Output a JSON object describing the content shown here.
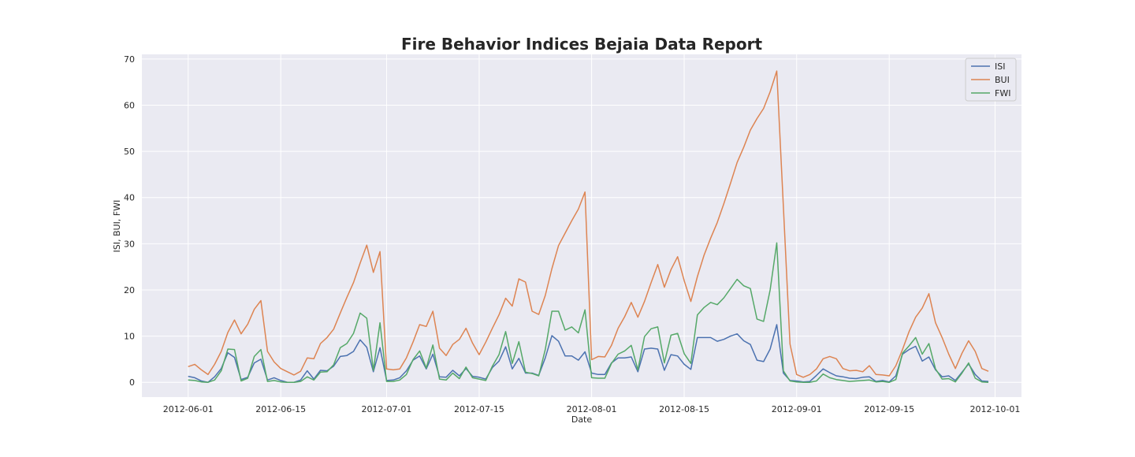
{
  "chart_data": {
    "type": "line",
    "title": "Fire Behavior Indices Bejaia Data Report",
    "xlabel": "Date",
    "ylabel": "ISI, BUI, FWI",
    "x_tick_labels": [
      "2012-06-01",
      "2012-06-15",
      "2012-07-01",
      "2012-07-15",
      "2012-08-01",
      "2012-08-15",
      "2012-09-01",
      "2012-09-15",
      "2012-10-01"
    ],
    "y_ticks": [
      0,
      10,
      20,
      30,
      40,
      50,
      60,
      70
    ],
    "xlim": [
      "2012-05-25",
      "2012-10-05"
    ],
    "ylim": [
      -3.2,
      71
    ],
    "grid": true,
    "legend_position": "top-right",
    "x_start_date": "2012-06-01",
    "series": [
      {
        "name": "ISI",
        "color": "#4c72b0",
        "values": [
          1.3,
          1.0,
          0.3,
          0.0,
          1.2,
          3.0,
          6.4,
          5.4,
          0.6,
          1.1,
          4.2,
          5.0,
          0.5,
          1.0,
          0.4,
          0.0,
          0.0,
          0.5,
          2.5,
          0.7,
          2.6,
          2.5,
          3.5,
          5.6,
          5.8,
          6.7,
          9.2,
          7.6,
          2.3,
          7.5,
          0.4,
          0.5,
          1.0,
          2.5,
          4.8,
          5.7,
          2.9,
          6.1,
          1.2,
          1.1,
          2.6,
          1.4,
          3.0,
          1.3,
          1.1,
          0.7,
          3.2,
          4.6,
          7.7,
          2.9,
          5.2,
          2.0,
          2.0,
          1.5,
          5.3,
          10.1,
          8.9,
          5.7,
          5.7,
          4.8,
          6.6,
          2.0,
          1.7,
          1.7,
          4.2,
          5.3,
          5.3,
          5.5,
          2.3,
          7.2,
          7.4,
          7.2,
          2.6,
          6.0,
          5.7,
          3.9,
          2.8,
          9.7,
          9.7,
          9.7,
          8.9,
          9.3,
          10.0,
          10.5,
          9.0,
          8.2,
          4.8,
          4.5,
          7.2,
          12.5,
          2.0,
          0.4,
          0.3,
          0.1,
          0.2,
          1.5,
          2.9,
          2.1,
          1.4,
          1.2,
          0.9,
          0.8,
          1.1,
          1.2,
          0.2,
          0.4,
          0.1,
          1.4,
          6.1,
          7.1,
          7.8,
          4.6,
          5.5,
          2.7,
          1.2,
          1.4,
          0.4,
          2.2,
          4.0,
          1.7,
          0.3,
          0.2
        ]
      },
      {
        "name": "BUI",
        "color": "#dd8452",
        "values": [
          3.4,
          3.9,
          2.7,
          1.7,
          3.9,
          6.7,
          10.8,
          13.5,
          10.5,
          12.6,
          15.8,
          17.7,
          6.7,
          4.4,
          3.0,
          2.3,
          1.6,
          2.4,
          5.3,
          5.1,
          8.4,
          9.7,
          11.5,
          15.0,
          18.4,
          21.6,
          25.8,
          29.7,
          23.8,
          28.3,
          2.9,
          2.7,
          2.9,
          5.3,
          8.7,
          12.5,
          12.1,
          15.4,
          7.4,
          5.8,
          8.2,
          9.3,
          11.7,
          8.5,
          6.0,
          8.7,
          11.7,
          14.6,
          18.2,
          16.5,
          22.4,
          21.7,
          15.4,
          14.7,
          18.8,
          24.6,
          29.6,
          32.3,
          35.0,
          37.5,
          41.2,
          4.9,
          5.6,
          5.5,
          8.0,
          11.7,
          14.2,
          17.3,
          14.1,
          17.5,
          21.6,
          25.5,
          20.6,
          24.4,
          27.2,
          22.0,
          17.5,
          22.9,
          27.5,
          31.2,
          34.6,
          38.7,
          43.1,
          47.6,
          50.9,
          54.6,
          57.1,
          59.3,
          62.9,
          67.4,
          38.0,
          8.3,
          1.7,
          1.1,
          1.7,
          2.9,
          5.1,
          5.6,
          5.1,
          3.0,
          2.5,
          2.6,
          2.3,
          3.6,
          1.7,
          1.6,
          1.4,
          3.6,
          7.1,
          11.0,
          14.1,
          16.1,
          19.2,
          12.9,
          9.7,
          6.1,
          3.0,
          6.3,
          9.0,
          6.7,
          3.0,
          2.4
        ]
      },
      {
        "name": "FWI",
        "color": "#55a868",
        "values": [
          0.5,
          0.4,
          0.1,
          0.0,
          0.5,
          2.5,
          7.2,
          7.1,
          0.3,
          0.9,
          5.6,
          7.1,
          0.2,
          0.4,
          0.1,
          0.0,
          0.0,
          0.2,
          1.2,
          0.5,
          2.2,
          2.3,
          3.8,
          7.5,
          8.4,
          10.6,
          15.0,
          13.9,
          2.6,
          12.9,
          0.2,
          0.2,
          0.5,
          1.7,
          4.9,
          6.8,
          3.1,
          8.1,
          0.7,
          0.5,
          2.0,
          0.8,
          3.3,
          1.0,
          0.7,
          0.4,
          3.5,
          6.0,
          11.0,
          4.1,
          8.8,
          2.2,
          1.9,
          1.4,
          7.1,
          15.4,
          15.4,
          11.3,
          12.0,
          10.7,
          15.7,
          1.0,
          0.9,
          0.9,
          4.1,
          6.1,
          6.8,
          8.0,
          2.7,
          9.9,
          11.6,
          12.0,
          4.2,
          10.2,
          10.6,
          6.2,
          4.1,
          14.6,
          16.2,
          17.3,
          16.8,
          18.3,
          20.3,
          22.3,
          20.9,
          20.3,
          13.7,
          13.2,
          20.0,
          30.2,
          2.5,
          0.3,
          0.1,
          0.0,
          0.0,
          0.3,
          1.8,
          1.0,
          0.6,
          0.4,
          0.2,
          0.3,
          0.4,
          0.5,
          0.1,
          0.2,
          0.0,
          0.6,
          6.3,
          7.9,
          9.7,
          6.1,
          8.4,
          2.9,
          0.7,
          0.8,
          0.1,
          2.0,
          4.2,
          0.9,
          0.1,
          0.0
        ]
      }
    ]
  }
}
